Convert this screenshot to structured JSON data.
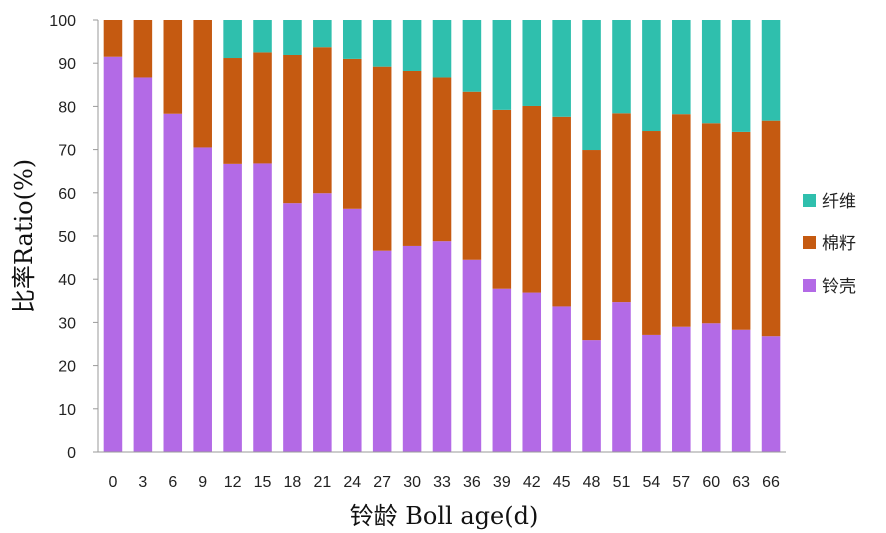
{
  "chart_data": {
    "type": "bar",
    "stacked": true,
    "title": "",
    "xlabel": "铃龄 Boll age(d)",
    "ylabel": "比率Ratio(%)",
    "ylim": [
      0,
      100
    ],
    "yticks": [
      0,
      10,
      20,
      30,
      40,
      50,
      60,
      70,
      80,
      90,
      100
    ],
    "grid": false,
    "legend_position": "right",
    "categories": [
      "0",
      "3",
      "6",
      "9",
      "12",
      "15",
      "18",
      "21",
      "24",
      "27",
      "30",
      "33",
      "36",
      "39",
      "42",
      "45",
      "48",
      "51",
      "54",
      "57",
      "60",
      "63",
      "66"
    ],
    "series": [
      {
        "name": "铃壳",
        "color": "#b36ae6",
        "values": [
          91.5,
          86.7,
          78.3,
          70.5,
          66.7,
          66.8,
          57.6,
          59.9,
          56.3,
          46.6,
          47.7,
          48.8,
          44.5,
          37.8,
          36.9,
          33.7,
          25.9,
          34.7,
          27.1,
          29.0,
          29.8,
          28.3,
          26.8
        ]
      },
      {
        "name": "棉籽",
        "color": "#c55a11",
        "values": [
          8.5,
          13.3,
          21.7,
          29.5,
          24.5,
          25.7,
          34.3,
          33.8,
          34.7,
          42.6,
          40.5,
          37.9,
          38.9,
          41.4,
          43.2,
          43.9,
          44.0,
          43.7,
          47.2,
          49.2,
          46.3,
          45.8,
          49.9
        ]
      },
      {
        "name": "纤维",
        "color": "#2fbfad",
        "values": [
          0,
          0,
          0,
          0,
          8.8,
          7.5,
          8.1,
          6.3,
          9.0,
          10.8,
          11.8,
          13.3,
          16.6,
          20.8,
          19.9,
          22.4,
          30.1,
          21.6,
          25.7,
          21.8,
          23.9,
          25.9,
          23.3
        ]
      }
    ],
    "legend_order": [
      "纤维",
      "棉籽",
      "铃壳"
    ]
  }
}
